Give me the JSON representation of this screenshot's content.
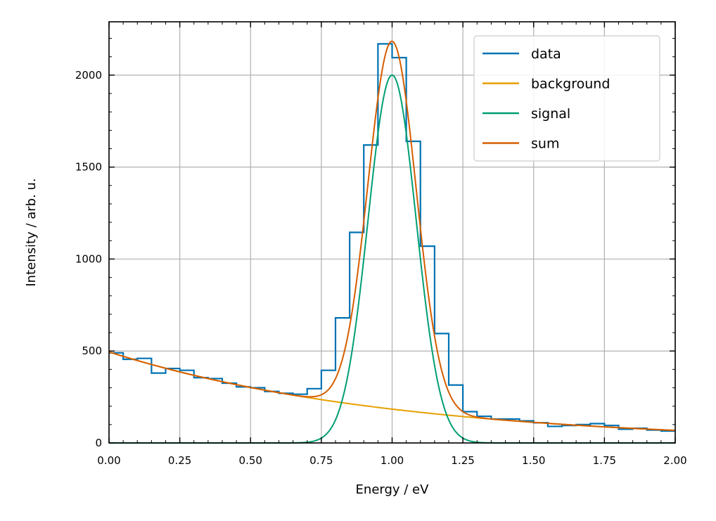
{
  "chart_data": {
    "type": "line",
    "title": "",
    "xlabel": "Energy / eV",
    "ylabel": "Intensity / arb. u.",
    "xlim": [
      0,
      2
    ],
    "ylim": [
      0,
      2290
    ],
    "xticks": [
      0,
      0.25,
      0.5,
      0.75,
      1.0,
      1.25,
      1.5,
      1.75,
      2.0
    ],
    "xtick_labels": [
      "0.00",
      "0.25",
      "0.50",
      "0.75",
      "1.00",
      "1.25",
      "1.50",
      "1.75",
      "2.00"
    ],
    "yticks": [
      0,
      500,
      1000,
      1500,
      2000
    ],
    "ytick_labels": [
      "0",
      "500",
      "1000",
      "1500",
      "2000"
    ],
    "grid": true,
    "legend_position": "top-right",
    "bin_edges": [
      0,
      0.05,
      0.1,
      0.15,
      0.2,
      0.25,
      0.3,
      0.35,
      0.4,
      0.45,
      0.5,
      0.55,
      0.6,
      0.65,
      0.7,
      0.75,
      0.8,
      0.85,
      0.9,
      0.95,
      1.0,
      1.05,
      1.1,
      1.15,
      1.2,
      1.25,
      1.3,
      1.35,
      1.4,
      1.45,
      1.5,
      1.55,
      1.6,
      1.65,
      1.7,
      1.75,
      1.8,
      1.85,
      1.9,
      1.95,
      2.0
    ],
    "series": [
      {
        "name": "data",
        "kind": "step",
        "color": "#0072B2",
        "values": [
          490,
          455,
          460,
          380,
          405,
          395,
          355,
          350,
          325,
          305,
          300,
          280,
          270,
          265,
          295,
          395,
          680,
          1145,
          1620,
          2170,
          2095,
          1640,
          1070,
          595,
          315,
          170,
          145,
          130,
          130,
          120,
          110,
          90,
          95,
          100,
          105,
          95,
          75,
          80,
          70,
          65
        ]
      },
      {
        "name": "background",
        "kind": "function",
        "color": "#E69F00",
        "model": "exponential",
        "params": {
          "amplitude": 495,
          "decay": 0.99
        }
      },
      {
        "name": "signal",
        "kind": "function",
        "color": "#009E73",
        "model": "gaussian",
        "params": {
          "amplitude": 2000,
          "center": 1.0,
          "sigma": 0.085
        }
      },
      {
        "name": "sum",
        "kind": "function",
        "color": "#D55E00",
        "model": "background+signal",
        "params": {}
      }
    ]
  }
}
